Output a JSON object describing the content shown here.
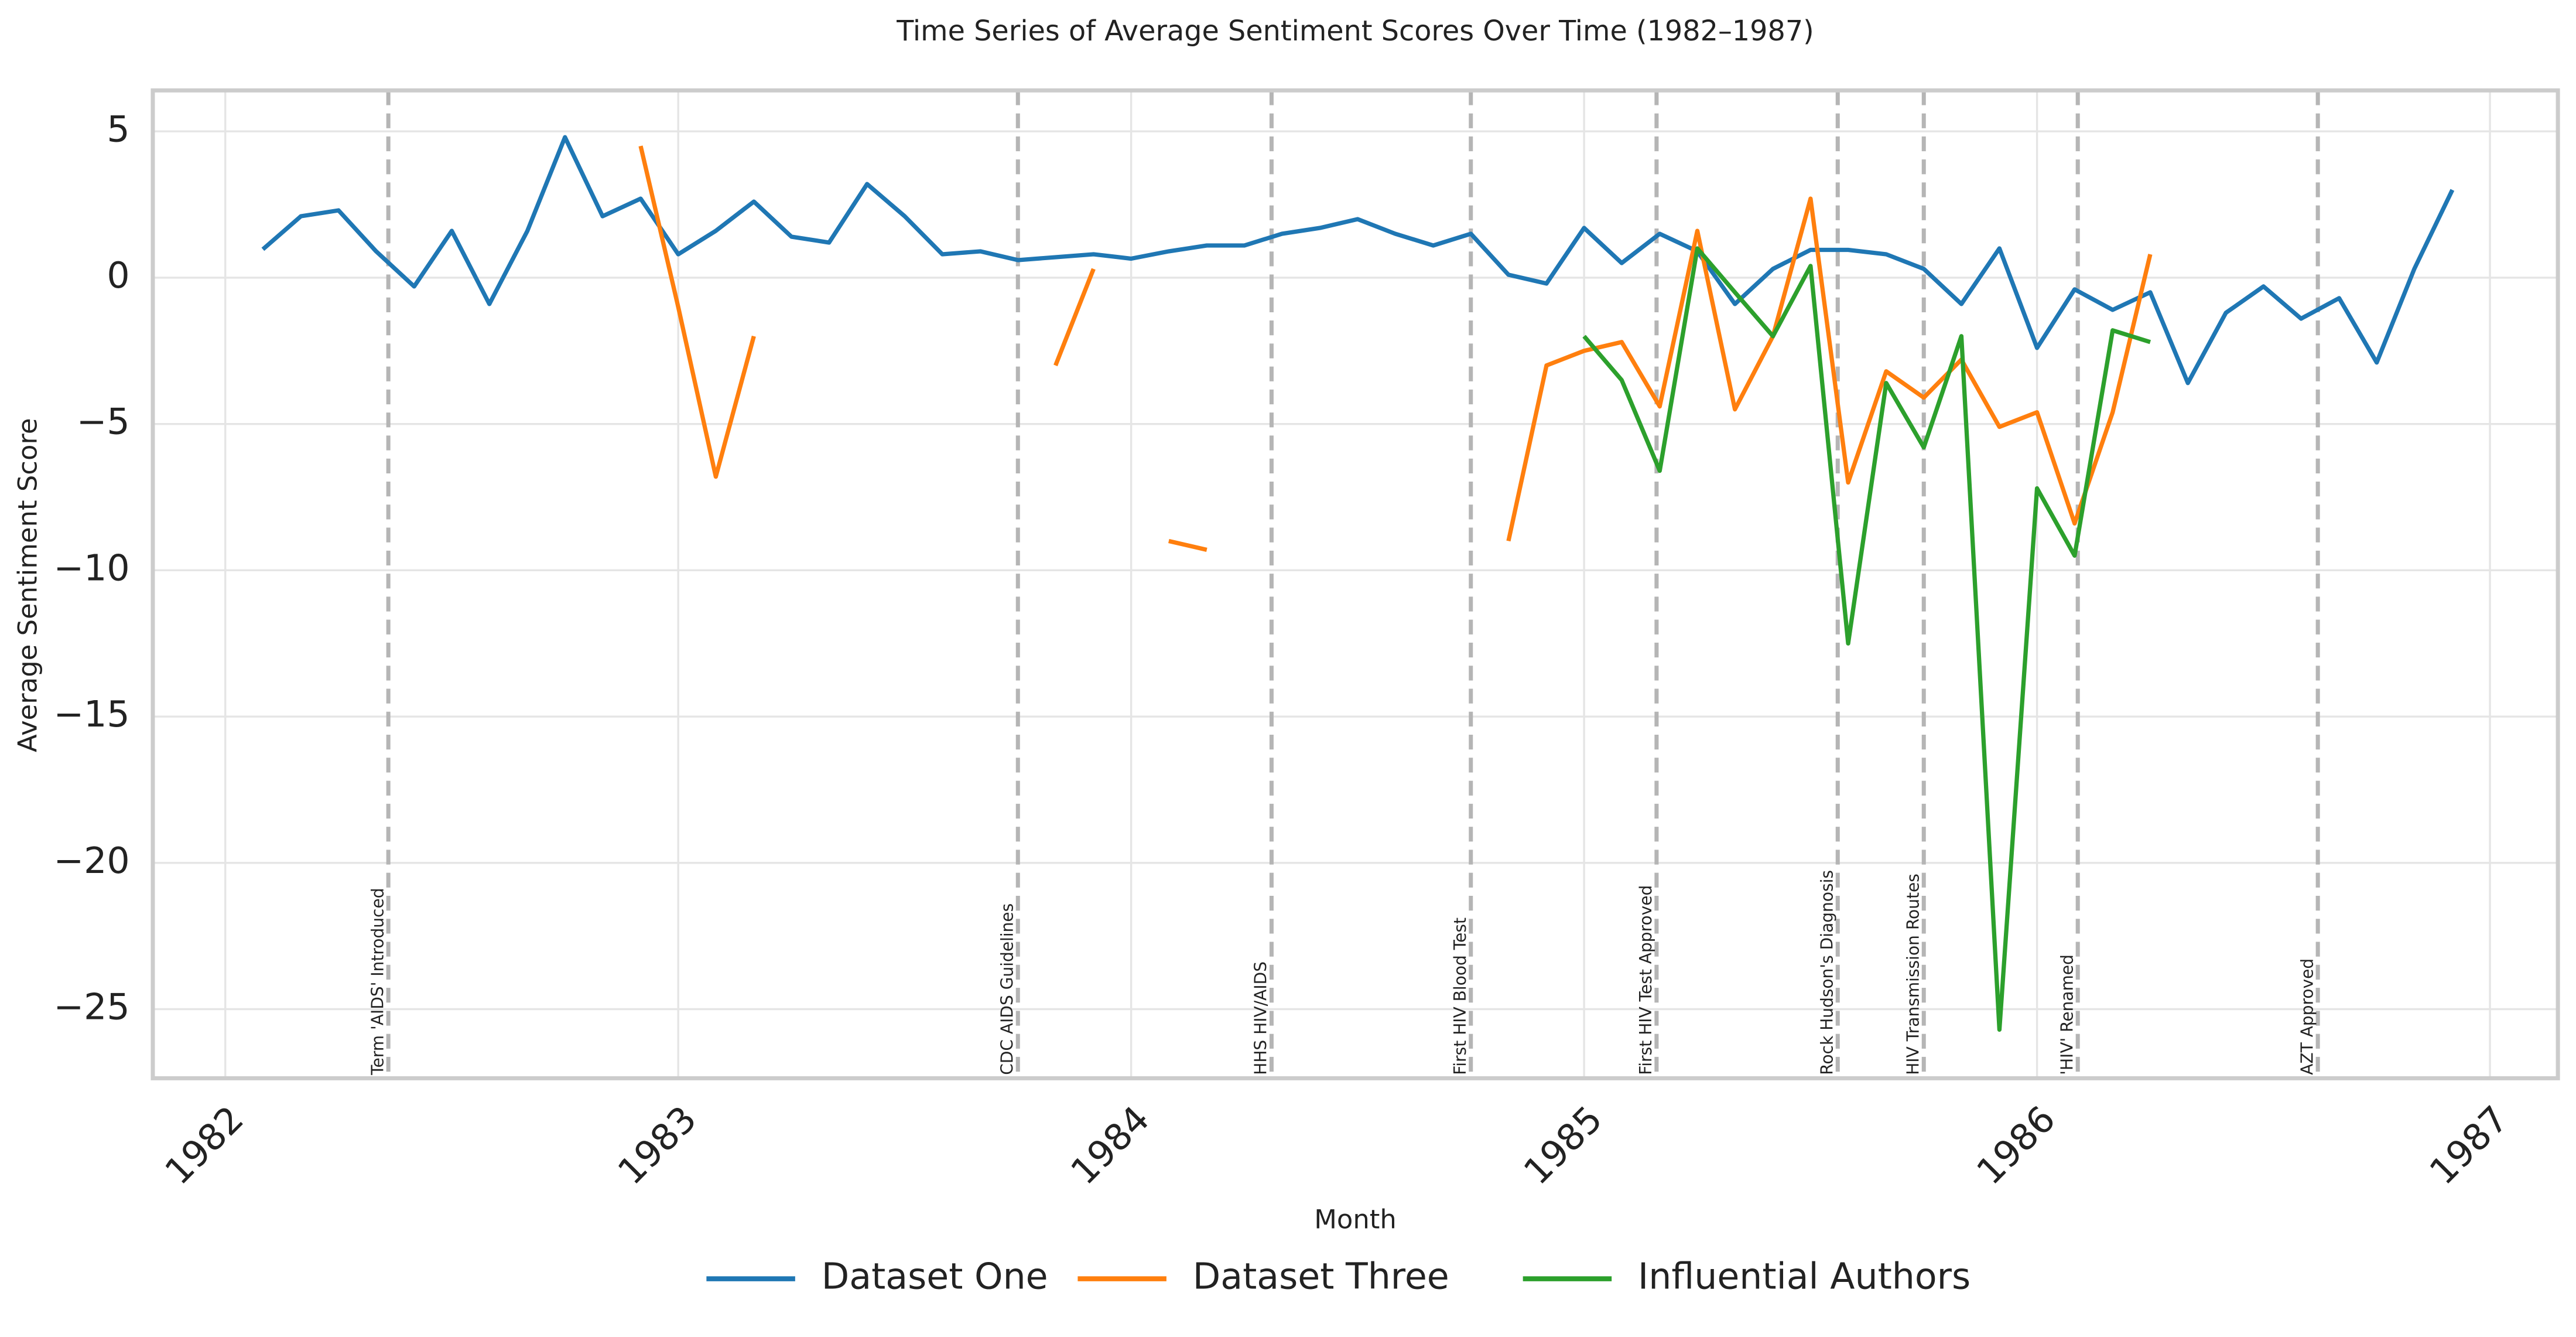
{
  "chart_data": {
    "type": "line",
    "title": "Time Series of Average Sentiment Scores Over Time (1982–1987)",
    "x_label": "Month",
    "y_label": "Average Sentiment Score",
    "x": [
      1982.083,
      1982.167,
      1982.25,
      1982.333,
      1982.417,
      1982.5,
      1982.583,
      1982.667,
      1982.75,
      1982.833,
      1982.917,
      1983,
      1983.083,
      1983.167,
      1983.25,
      1983.333,
      1983.417,
      1983.5,
      1983.583,
      1983.667,
      1983.75,
      1983.833,
      1983.917,
      1984,
      1984.083,
      1984.167,
      1984.25,
      1984.333,
      1984.417,
      1984.5,
      1984.583,
      1984.667,
      1984.75,
      1984.833,
      1984.917,
      1985,
      1985.083,
      1985.167,
      1985.25,
      1985.333,
      1985.417,
      1985.5,
      1985.583,
      1985.667,
      1985.75,
      1985.833,
      1985.917,
      1986,
      1986.083,
      1986.167,
      1986.25,
      1986.333,
      1986.417,
      1986.5,
      1986.583,
      1986.667,
      1986.75,
      1986.833,
      1986.917
    ],
    "series": [
      {
        "name": "Dataset One",
        "color": "#1f77b4",
        "values": [
          0.97,
          2.1,
          2.3,
          0.9,
          -0.3,
          1.6,
          -0.9,
          1.6,
          4.8,
          2.1,
          2.7,
          0.8,
          1.6,
          2.6,
          1.4,
          1.2,
          3.2,
          2.1,
          0.8,
          0.9,
          0.6,
          0.7,
          0.8,
          0.65,
          0.9,
          1.1,
          1.1,
          1.5,
          1.7,
          2.0,
          1.5,
          1.1,
          1.5,
          0.1,
          -0.2,
          1.7,
          0.5,
          1.5,
          0.9,
          -0.9,
          0.3,
          0.95,
          0.95,
          0.8,
          0.3,
          -0.9,
          1.0,
          -2.4,
          -0.4,
          -1.1,
          -0.5,
          -3.6,
          -1.2,
          -0.3,
          -1.4,
          -0.7,
          -2.9,
          0.3,
          3.0
        ]
      },
      {
        "name": "Dataset Three",
        "color": "#ff7f0e",
        "values": [
          null,
          null,
          null,
          null,
          null,
          null,
          null,
          null,
          null,
          null,
          4.5,
          -1.0,
          -6.8,
          -2.0,
          null,
          null,
          null,
          null,
          null,
          null,
          null,
          -3.0,
          0.3,
          null,
          -9.0,
          -9.3,
          null,
          null,
          null,
          null,
          null,
          null,
          null,
          -9.0,
          -3.0,
          -2.5,
          -2.2,
          -4.4,
          1.6,
          -4.5,
          -2.0,
          2.7,
          -7.0,
          -3.2,
          -4.1,
          -2.8,
          -5.1,
          -4.6,
          -8.4,
          -4.6,
          0.8,
          null,
          null,
          null,
          null,
          null,
          null,
          null,
          null
        ]
      },
      {
        "name": "Influential Authors",
        "color": "#2ca02c",
        "values": [
          null,
          null,
          null,
          null,
          null,
          null,
          null,
          null,
          null,
          null,
          null,
          null,
          null,
          null,
          null,
          null,
          null,
          null,
          null,
          null,
          null,
          null,
          null,
          null,
          null,
          null,
          null,
          null,
          null,
          null,
          null,
          null,
          null,
          null,
          null,
          -2.0,
          -3.5,
          -6.6,
          1.0,
          -0.5,
          -2.0,
          0.4,
          -12.5,
          -3.6,
          -5.8,
          -2.0,
          -25.7,
          -7.2,
          -9.5,
          -1.8,
          -2.2,
          null,
          null,
          null,
          null,
          null,
          null,
          null,
          null
        ]
      }
    ],
    "annotations": [
      {
        "x": 1982.36,
        "label": "Term 'AIDS' Introduced"
      },
      {
        "x": 1983.75,
        "label": "CDC AIDS Guidelines"
      },
      {
        "x": 1984.31,
        "label": "HHS HIV/AIDS"
      },
      {
        "x": 1984.75,
        "label": "First HIV Blood Test"
      },
      {
        "x": 1985.16,
        "label": "First HIV Test Approved"
      },
      {
        "x": 1985.56,
        "label": "Rock Hudson's Diagnosis"
      },
      {
        "x": 1985.75,
        "label": "HIV Transmission Routes"
      },
      {
        "x": 1986.09,
        "label": "'HIV' Renamed"
      },
      {
        "x": 1986.62,
        "label": "AZT Approved"
      }
    ],
    "xlim": [
      1981.84,
      1987.15
    ],
    "ylim": [
      -27.36,
      6.4
    ],
    "xticks": [
      1982,
      1983,
      1984,
      1985,
      1986,
      1987
    ],
    "yticks": [
      5,
      0,
      {
        "value": -5,
        "label": "−5"
      },
      {
        "value": -10,
        "label": "−10"
      },
      {
        "value": -15,
        "label": "−15"
      },
      {
        "value": -20,
        "label": "−20"
      },
      {
        "value": -25,
        "label": "−25"
      }
    ],
    "grid": true,
    "legend": "bottom"
  }
}
